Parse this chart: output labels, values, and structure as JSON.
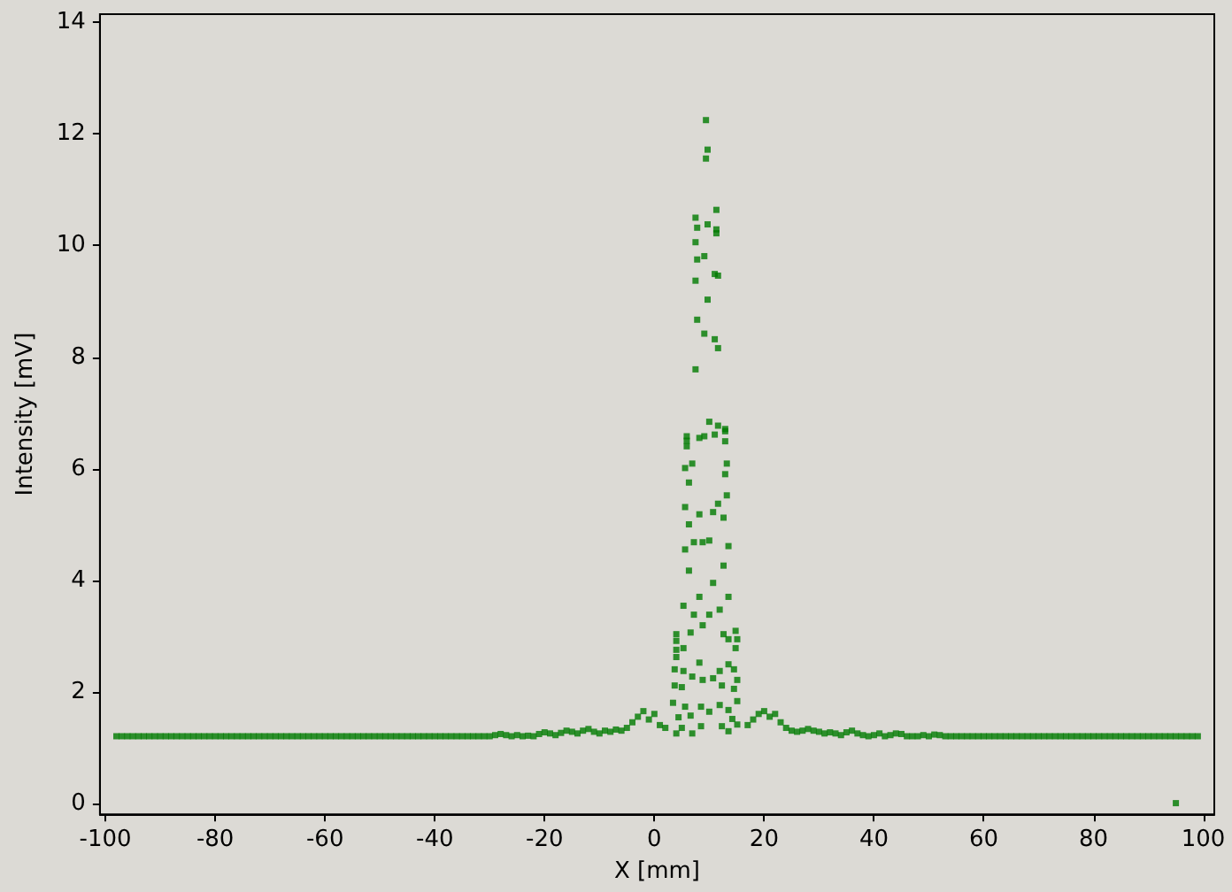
{
  "chart_data": {
    "type": "scatter",
    "xlabel": "X [mm]",
    "ylabel": "Intensity [mV]",
    "xlim": [
      -101,
      102
    ],
    "ylim": [
      -0.2,
      14.15
    ],
    "xticks": [
      -100,
      -80,
      -60,
      -40,
      -20,
      0,
      20,
      40,
      60,
      80,
      100
    ],
    "yticks": [
      0,
      2,
      4,
      6,
      8,
      10,
      12,
      14
    ],
    "marker": "square",
    "grid": false,
    "series": [
      {
        "color": "#007a00",
        "x": [
          -98,
          -97,
          -96,
          -95,
          -94,
          -93,
          -92,
          -91,
          -90,
          -89,
          -88,
          -87,
          -86,
          -85,
          -84,
          -83,
          -82,
          -81,
          -80,
          -79,
          -78,
          -77,
          -76,
          -75,
          -74,
          -73,
          -72,
          -71,
          -70,
          -69,
          -68,
          -67,
          -66,
          -65,
          -64,
          -63,
          -62,
          -61,
          -60,
          -59,
          -58,
          -57,
          -56,
          -55,
          -54,
          -53,
          -52,
          -51,
          -50,
          -49,
          -48,
          -47,
          -46,
          -45,
          -44,
          -43,
          -42,
          -41,
          -40,
          -39,
          -38,
          -37,
          -36,
          -35,
          -34,
          -33,
          -32,
          -31,
          -30,
          -29,
          -28,
          -27,
          -26,
          -25,
          -24,
          -23,
          -22,
          -21,
          -20,
          -19,
          -18,
          -17,
          -16,
          -15,
          -14,
          -13,
          -12,
          -11,
          -10,
          -9,
          -8,
          -7,
          -6,
          -5,
          -4,
          -3,
          -2,
          -1,
          0,
          1,
          2
        ],
        "values": [
          1.2,
          1.2,
          1.2,
          1.2,
          1.2,
          1.2,
          1.2,
          1.2,
          1.2,
          1.2,
          1.2,
          1.2,
          1.2,
          1.2,
          1.2,
          1.2,
          1.2,
          1.2,
          1.2,
          1.2,
          1.2,
          1.2,
          1.2,
          1.2,
          1.2,
          1.2,
          1.2,
          1.2,
          1.2,
          1.2,
          1.2,
          1.2,
          1.2,
          1.2,
          1.2,
          1.2,
          1.2,
          1.2,
          1.2,
          1.2,
          1.2,
          1.2,
          1.2,
          1.2,
          1.2,
          1.2,
          1.2,
          1.2,
          1.2,
          1.2,
          1.2,
          1.2,
          1.2,
          1.2,
          1.2,
          1.2,
          1.2,
          1.2,
          1.2,
          1.2,
          1.2,
          1.2,
          1.2,
          1.2,
          1.2,
          1.2,
          1.2,
          1.2,
          1.2,
          1.22,
          1.24,
          1.22,
          1.2,
          1.22,
          1.2,
          1.21,
          1.2,
          1.24,
          1.27,
          1.25,
          1.22,
          1.26,
          1.3,
          1.28,
          1.25,
          1.3,
          1.33,
          1.28,
          1.25,
          1.3,
          1.28,
          1.32,
          1.3,
          1.35,
          1.45,
          1.55,
          1.65,
          1.5,
          1.6,
          1.4,
          1.35
        ]
      },
      {
        "color": "#007a00",
        "x": [
          9.4,
          9.7,
          9.4,
          11.3,
          7.5,
          9.7,
          7.8,
          11.3,
          11.3,
          7.5,
          9.1,
          7.8,
          11.0,
          11.6,
          7.5,
          9.7,
          7.8,
          9.1,
          11.0,
          11.6,
          7.5,
          10.0,
          11.6,
          12.9,
          5.9,
          8.2,
          9.1,
          11.0,
          12.9,
          5.9,
          5.9,
          12.9,
          6.9,
          5.6,
          13.2,
          12.9,
          6.3,
          13.2,
          11.6,
          5.6,
          8.2,
          10.7,
          12.6,
          6.3,
          7.2,
          8.8,
          10.0,
          5.6,
          13.5,
          12.6,
          6.3,
          10.7,
          8.2,
          13.5,
          5.3,
          7.2,
          10.0,
          11.9,
          8.8,
          6.6,
          12.6,
          14.8,
          4.0,
          4.0,
          15.1,
          13.5,
          5.3,
          4.0,
          14.8,
          4.0,
          8.2,
          13.5,
          14.5,
          3.7,
          5.3,
          11.9,
          10.7,
          8.8,
          6.9,
          15.1,
          3.7,
          5.0,
          12.3,
          14.5,
          3.4,
          15.1,
          5.6,
          8.5,
          10.0,
          13.5,
          11.9,
          4.4,
          6.6,
          14.2,
          5.0,
          8.5,
          12.3,
          15.1,
          4.0,
          6.9,
          13.5
        ],
        "values": [
          12.25,
          11.72,
          11.56,
          10.64,
          10.5,
          10.38,
          10.32,
          10.29,
          10.22,
          10.06,
          9.81,
          9.75,
          9.49,
          9.46,
          9.37,
          9.03,
          8.67,
          8.42,
          8.32,
          8.16,
          7.78,
          6.84,
          6.77,
          6.71,
          6.58,
          6.55,
          6.58,
          6.61,
          6.67,
          6.5,
          6.4,
          6.49,
          6.09,
          6.01,
          6.09,
          5.9,
          5.75,
          5.52,
          5.37,
          5.31,
          5.18,
          5.22,
          5.12,
          5.0,
          4.68,
          4.68,
          4.71,
          4.55,
          4.61,
          4.26,
          4.17,
          3.95,
          3.7,
          3.7,
          3.54,
          3.38,
          3.38,
          3.47,
          3.19,
          3.06,
          3.03,
          3.09,
          3.03,
          2.91,
          2.94,
          2.94,
          2.78,
          2.75,
          2.78,
          2.62,
          2.52,
          2.49,
          2.4,
          2.4,
          2.37,
          2.37,
          2.24,
          2.21,
          2.27,
          2.21,
          2.11,
          2.08,
          2.11,
          2.05,
          1.8,
          1.83,
          1.73,
          1.73,
          1.64,
          1.67,
          1.76,
          1.54,
          1.57,
          1.51,
          1.35,
          1.38,
          1.38,
          1.41,
          1.25,
          1.25,
          1.29
        ]
      },
      {
        "color": "#007a00",
        "x": [
          17,
          18,
          19,
          20,
          21,
          22,
          23,
          24,
          25,
          26,
          27,
          28,
          29,
          30,
          31,
          32,
          33,
          34,
          35,
          36,
          37,
          38,
          39,
          40,
          41,
          42,
          43,
          44,
          45,
          46,
          47,
          48,
          49,
          50,
          51,
          52,
          53,
          54,
          55,
          56,
          57,
          58,
          59,
          60,
          61,
          62,
          63,
          64,
          65,
          66,
          67,
          68,
          69,
          70,
          71,
          72,
          73,
          74,
          75,
          76,
          77,
          78,
          79,
          80,
          81,
          82,
          83,
          84,
          85,
          86,
          87,
          88,
          89,
          90,
          91,
          92,
          93,
          94,
          95,
          96,
          97,
          98,
          99
        ],
        "values": [
          1.4,
          1.5,
          1.6,
          1.65,
          1.55,
          1.6,
          1.45,
          1.35,
          1.3,
          1.28,
          1.3,
          1.33,
          1.3,
          1.28,
          1.25,
          1.27,
          1.25,
          1.22,
          1.27,
          1.3,
          1.25,
          1.22,
          1.2,
          1.22,
          1.25,
          1.2,
          1.22,
          1.25,
          1.24,
          1.2,
          1.2,
          1.2,
          1.22,
          1.2,
          1.23,
          1.22,
          1.2,
          1.2,
          1.2,
          1.2,
          1.2,
          1.2,
          1.2,
          1.2,
          1.2,
          1.2,
          1.2,
          1.2,
          1.2,
          1.2,
          1.2,
          1.2,
          1.2,
          1.2,
          1.2,
          1.2,
          1.2,
          1.2,
          1.2,
          1.2,
          1.2,
          1.2,
          1.2,
          1.2,
          1.2,
          1.2,
          1.2,
          1.2,
          1.2,
          1.2,
          1.2,
          1.2,
          1.2,
          1.2,
          1.2,
          1.2,
          1.2,
          1.2,
          1.2,
          1.2,
          1.2,
          1.2,
          1.2
        ]
      },
      {
        "color": "#007a00",
        "x": [
          95
        ],
        "values": [
          0.0
        ]
      }
    ]
  }
}
